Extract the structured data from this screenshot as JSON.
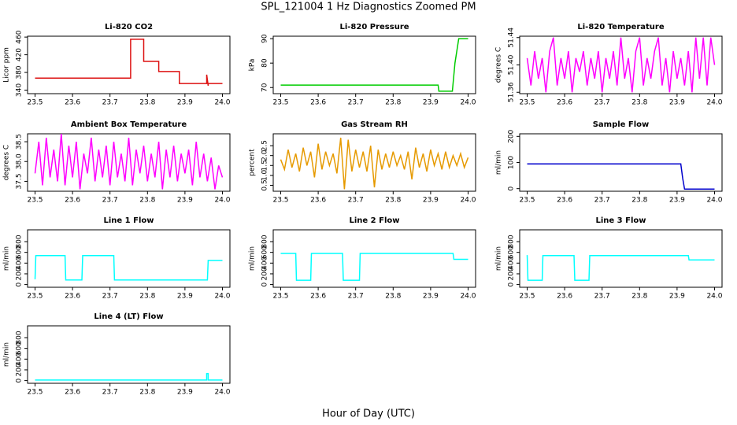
{
  "title": "SPL_121004  1 Hz Diagnostics Zoomed PM",
  "xlabel": "Hour of Day (UTC)",
  "chart_data": [
    {
      "type": "line",
      "title": "Li-820 CO2",
      "ylabel": "Licor ppm",
      "color": "#dd1111",
      "x": [
        23.5,
        23.755,
        23.755,
        23.79,
        23.79,
        23.83,
        23.83,
        23.885,
        23.885,
        23.958,
        23.958,
        23.962,
        23.962,
        24.0
      ],
      "values": [
        367,
        367,
        455,
        455,
        405,
        405,
        382,
        382,
        355,
        355,
        375,
        350,
        355,
        355
      ],
      "xlim": [
        23.48,
        24.02
      ],
      "xticks": [
        23.5,
        23.6,
        23.7,
        23.8,
        23.9,
        {
          "value": 24,
          "label": "24.0"
        }
      ],
      "ylim": [
        332,
        462
      ],
      "yticks": [
        340,
        380,
        420,
        460
      ]
    },
    {
      "type": "line",
      "title": "Li-820 Pressure",
      "ylabel": "kPa",
      "color": "#00cc00",
      "x": [
        23.5,
        23.92,
        23.922,
        23.958,
        23.965,
        23.975,
        24.0
      ],
      "values": [
        71,
        71,
        68.5,
        68.5,
        80,
        90,
        90
      ],
      "xlim": [
        23.48,
        24.02
      ],
      "xticks": [
        23.5,
        23.6,
        23.7,
        23.8,
        23.9,
        {
          "value": 24,
          "label": "24.0"
        }
      ],
      "ylim": [
        67.5,
        91
      ],
      "yticks": [
        70,
        80,
        90
      ]
    },
    {
      "type": "line",
      "title": "Li-820 Temperature",
      "ylabel": "degrees C",
      "color": "#ff00ff",
      "x": [
        23.5,
        23.51,
        23.52,
        23.53,
        23.54,
        23.55,
        23.56,
        23.57,
        23.58,
        23.59,
        23.6,
        23.61,
        23.62,
        23.63,
        23.64,
        23.65,
        23.66,
        23.67,
        23.68,
        23.69,
        23.7,
        23.71,
        23.72,
        23.73,
        23.74,
        23.75,
        23.76,
        23.77,
        23.78,
        23.79,
        23.8,
        23.81,
        23.82,
        23.83,
        23.84,
        23.85,
        23.86,
        23.87,
        23.88,
        23.89,
        23.9,
        23.91,
        23.92,
        23.93,
        23.94,
        23.95,
        23.96,
        23.97,
        23.98,
        23.99,
        24.0
      ],
      "values": [
        51.41,
        51.37,
        51.42,
        51.38,
        51.41,
        51.36,
        51.42,
        51.44,
        51.37,
        51.41,
        51.38,
        51.42,
        51.36,
        51.41,
        51.39,
        51.42,
        51.37,
        51.41,
        51.38,
        51.42,
        51.36,
        51.41,
        51.38,
        51.42,
        51.37,
        51.44,
        51.38,
        51.41,
        51.36,
        51.42,
        51.44,
        51.37,
        51.41,
        51.38,
        51.42,
        51.44,
        51.37,
        51.41,
        51.36,
        51.42,
        51.38,
        51.41,
        51.37,
        51.42,
        51.36,
        51.44,
        51.38,
        51.44,
        51.37,
        51.44,
        51.4
      ],
      "xlim": [
        23.48,
        24.02
      ],
      "xticks": [
        23.5,
        23.6,
        23.7,
        23.8,
        23.9,
        {
          "value": 24,
          "label": "24.0"
        }
      ],
      "ylim": [
        51.358,
        51.442
      ],
      "yticks": [
        51.36,
        {
          "value": 51.4,
          "label": "51.40"
        },
        51.44
      ]
    },
    {
      "type": "line",
      "title": "Ambient Box Temperature",
      "ylabel": "degrees C",
      "color": "#ff00ff",
      "x": [
        23.5,
        23.51,
        23.52,
        23.53,
        23.54,
        23.55,
        23.56,
        23.57,
        23.58,
        23.59,
        23.6,
        23.61,
        23.62,
        23.63,
        23.64,
        23.65,
        23.66,
        23.67,
        23.68,
        23.69,
        23.7,
        23.71,
        23.72,
        23.73,
        23.74,
        23.75,
        23.76,
        23.77,
        23.78,
        23.79,
        23.8,
        23.81,
        23.82,
        23.83,
        23.84,
        23.85,
        23.86,
        23.87,
        23.88,
        23.89,
        23.9,
        23.91,
        23.92,
        23.93,
        23.94,
        23.95,
        23.96,
        23.97,
        23.98,
        23.99,
        24.0
      ],
      "values": [
        37.7,
        38.5,
        37.4,
        38.6,
        37.6,
        38.3,
        37.5,
        38.7,
        37.4,
        38.4,
        37.6,
        38.5,
        37.3,
        38.2,
        37.7,
        38.6,
        37.5,
        38.3,
        37.6,
        38.4,
        37.4,
        38.5,
        37.6,
        38.2,
        37.5,
        38.6,
        37.4,
        38.3,
        37.7,
        38.4,
        37.5,
        38.2,
        37.6,
        38.5,
        37.3,
        38.3,
        37.6,
        38.4,
        37.5,
        38.2,
        37.7,
        38.3,
        37.4,
        38.5,
        37.6,
        38.2,
        37.5,
        38.1,
        37.3,
        37.9,
        37.6
      ],
      "xlim": [
        23.48,
        24.02
      ],
      "xticks": [
        23.5,
        23.6,
        23.7,
        23.8,
        23.9,
        {
          "value": 24,
          "label": "24.0"
        }
      ],
      "ylim": [
        37.25,
        38.7
      ],
      "yticks": [
        37.5,
        {
          "value": 38,
          "label": "38.0"
        },
        38.5
      ]
    },
    {
      "type": "line",
      "title": "Gas Stream RH",
      "ylabel": "percent",
      "color": "#e69a00",
      "x": [
        23.5,
        23.51,
        23.52,
        23.53,
        23.54,
        23.55,
        23.56,
        23.57,
        23.58,
        23.59,
        23.6,
        23.61,
        23.62,
        23.63,
        23.64,
        23.65,
        23.66,
        23.67,
        23.68,
        23.69,
        23.7,
        23.71,
        23.72,
        23.73,
        23.74,
        23.75,
        23.76,
        23.77,
        23.78,
        23.79,
        23.8,
        23.81,
        23.82,
        23.83,
        23.84,
        23.85,
        23.86,
        23.87,
        23.88,
        23.89,
        23.9,
        23.91,
        23.92,
        23.93,
        23.94,
        23.95,
        23.96,
        23.97,
        23.98,
        23.99,
        24.0
      ],
      "values": [
        1.8,
        1.3,
        2.3,
        1.4,
        2.1,
        1.2,
        2.4,
        1.5,
        2.2,
        0.9,
        2.6,
        1.3,
        2.2,
        1.5,
        2.1,
        1.1,
        2.9,
        0.3,
        2.8,
        1.2,
        2.3,
        1.4,
        2.2,
        1.2,
        2.5,
        0.4,
        2.3,
        1.3,
        2.1,
        1.4,
        2.2,
        1.5,
        2.0,
        1.3,
        2.2,
        0.8,
        2.4,
        1.4,
        2.1,
        1.2,
        2.3,
        1.5,
        2.1,
        1.3,
        2.2,
        1.4,
        2.0,
        1.5,
        2.1,
        1.4,
        1.9
      ],
      "xlim": [
        23.48,
        24.02
      ],
      "xticks": [
        23.5,
        23.6,
        23.7,
        23.8,
        23.9,
        {
          "value": 24,
          "label": "24.0"
        }
      ],
      "ylim": [
        0.2,
        3.1
      ],
      "yticks": [
        0.5,
        {
          "value": 1,
          "label": "1.0"
        },
        1.5,
        {
          "value": 2,
          "label": "2.0"
        },
        2.5
      ]
    },
    {
      "type": "line",
      "title": "Sample Flow",
      "ylabel": "ml/min",
      "color": "#0000cc",
      "x": [
        23.5,
        23.91,
        23.915,
        23.92,
        24.0
      ],
      "values": [
        95,
        95,
        40,
        -2,
        -2
      ],
      "xlim": [
        23.48,
        24.02
      ],
      "xticks": [
        23.5,
        23.6,
        23.7,
        23.8,
        23.9,
        {
          "value": 24,
          "label": "24.0"
        }
      ],
      "ylim": [
        -10,
        210
      ],
      "yticks": [
        0,
        100,
        200
      ]
    },
    {
      "type": "line",
      "title": "Line 1 Flow",
      "ylabel": "ml/min",
      "color": "#00ffff",
      "x": [
        23.5,
        23.502,
        23.58,
        23.582,
        23.625,
        23.627,
        23.71,
        23.712,
        23.96,
        23.962,
        24.0
      ],
      "values": [
        100,
        540,
        540,
        85,
        85,
        540,
        540,
        85,
        85,
        450,
        450
      ],
      "xlim": [
        23.48,
        24.02
      ],
      "xticks": [
        23.5,
        23.6,
        23.7,
        23.8,
        23.9,
        {
          "value": 24,
          "label": "24.0"
        }
      ],
      "ylim": [
        -50,
        1020
      ],
      "yticks": [
        0,
        200,
        400,
        600,
        800
      ]
    },
    {
      "type": "line",
      "title": "Line 2 Flow",
      "ylabel": "ml/min",
      "color": "#00ffff",
      "x": [
        23.5,
        23.54,
        23.542,
        23.58,
        23.582,
        23.665,
        23.667,
        23.71,
        23.712,
        23.96,
        23.962,
        24.0
      ],
      "values": [
        580,
        580,
        80,
        80,
        580,
        580,
        80,
        80,
        580,
        580,
        470,
        470
      ],
      "xlim": [
        23.48,
        24.02
      ],
      "xticks": [
        23.5,
        23.6,
        23.7,
        23.8,
        23.9,
        {
          "value": 24,
          "label": "24.0"
        }
      ],
      "ylim": [
        -50,
        1020
      ],
      "yticks": [
        0,
        200,
        400,
        600,
        800
      ]
    },
    {
      "type": "line",
      "title": "Line 3 Flow",
      "ylabel": "ml/min",
      "color": "#00ffff",
      "x": [
        23.5,
        23.502,
        23.54,
        23.542,
        23.625,
        23.627,
        23.665,
        23.667,
        23.93,
        23.932,
        24.0
      ],
      "values": [
        550,
        80,
        80,
        540,
        540,
        80,
        80,
        540,
        540,
        460,
        460
      ],
      "xlim": [
        23.48,
        24.02
      ],
      "xticks": [
        23.5,
        23.6,
        23.7,
        23.8,
        23.9,
        {
          "value": 24,
          "label": "24.0"
        }
      ],
      "ylim": [
        -50,
        1020
      ],
      "yticks": [
        0,
        200,
        400,
        600,
        800
      ]
    },
    {
      "type": "line",
      "title": "Line 4 (LT) Flow",
      "ylabel": "ml/min",
      "color": "#00ffff",
      "x": [
        23.5,
        23.958,
        23.958,
        23.962,
        23.962,
        24.0
      ],
      "values": [
        10,
        10,
        130,
        130,
        10,
        10
      ],
      "xlim": [
        23.48,
        24.02
      ],
      "xticks": [
        23.5,
        23.6,
        23.7,
        23.8,
        23.9,
        {
          "value": 24,
          "label": "24.0"
        }
      ],
      "ylim": [
        -50,
        1020
      ],
      "yticks": [
        0,
        200,
        400,
        600,
        800
      ]
    }
  ]
}
